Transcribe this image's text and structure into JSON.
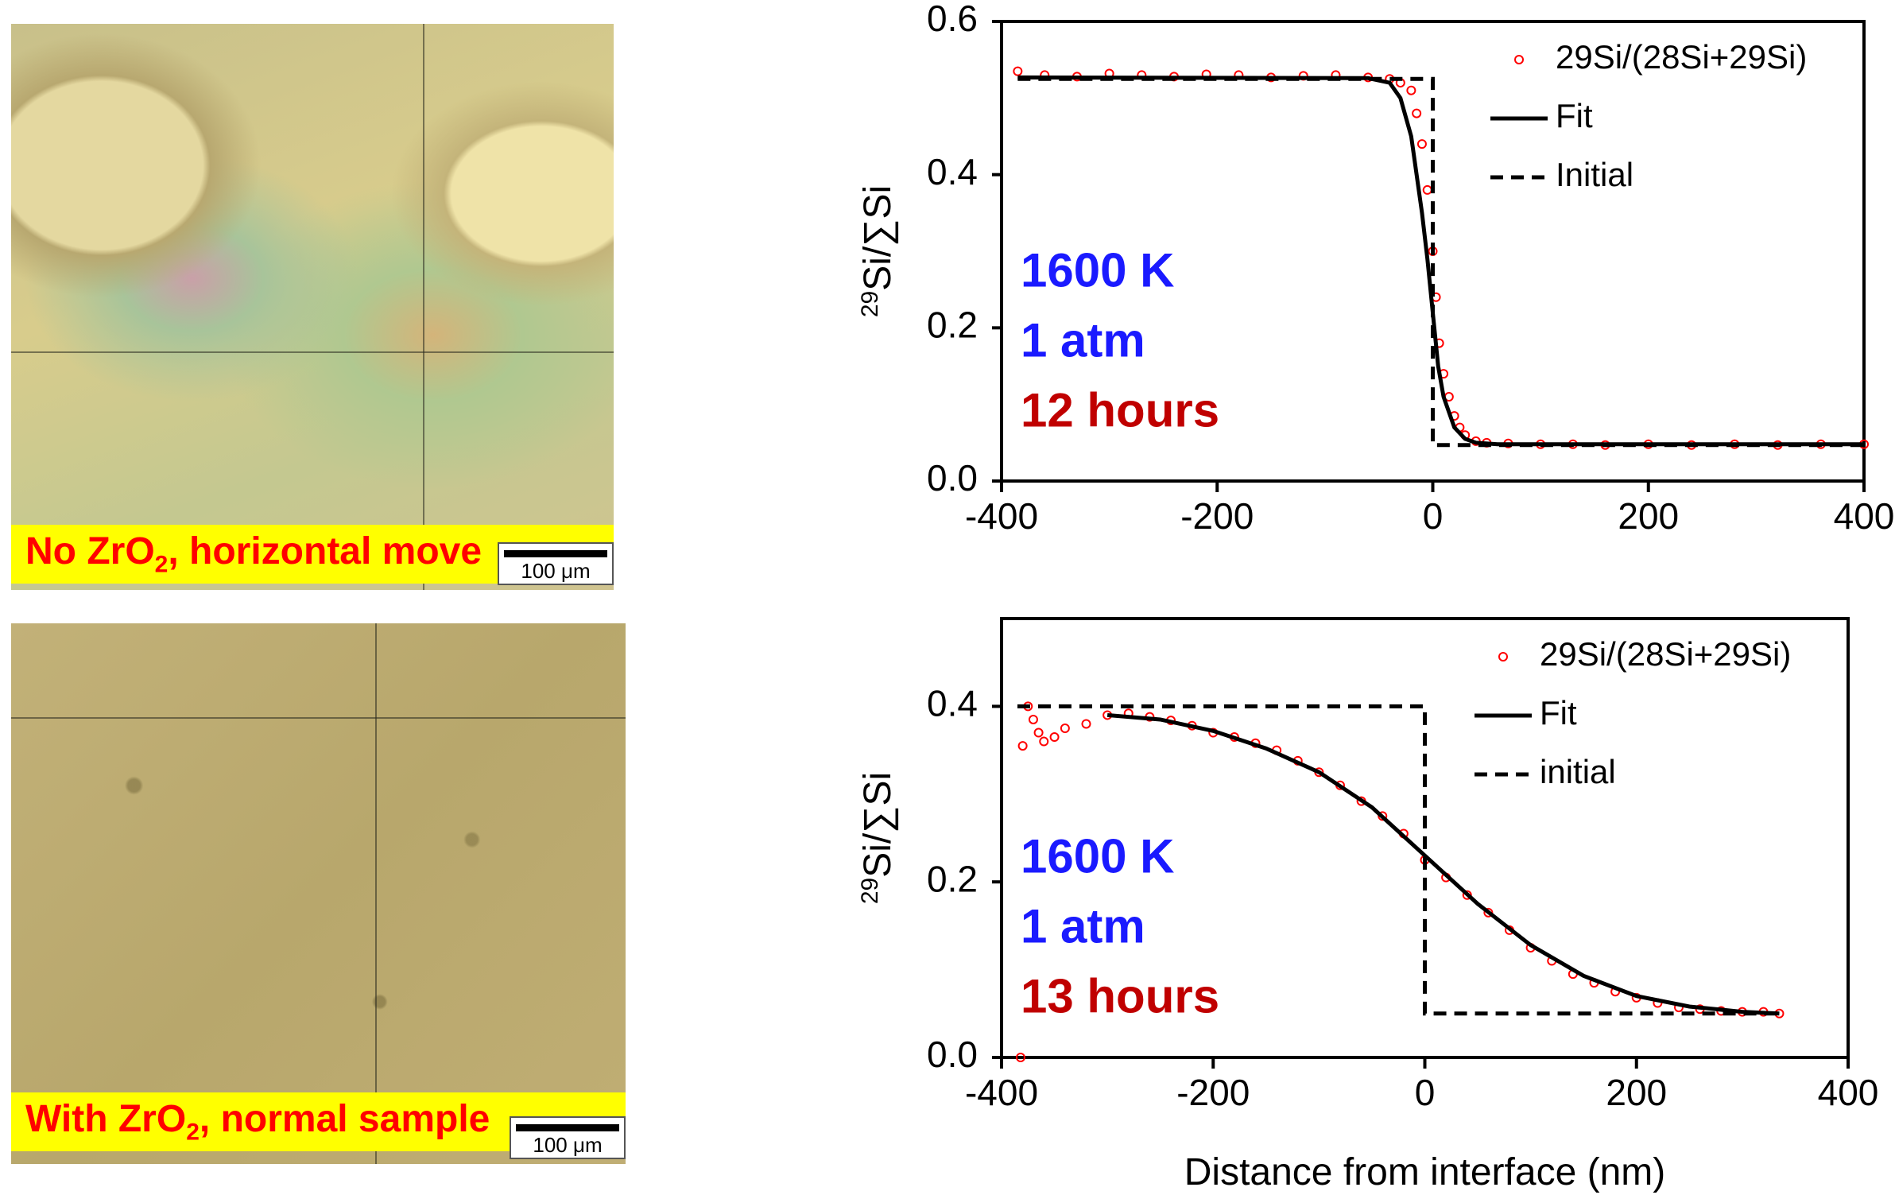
{
  "micrographs": [
    {
      "label": [
        "No ZrO",
        "2",
        ", horizontal move"
      ],
      "scale_bar": "100 μm"
    },
    {
      "label": [
        "With ZrO",
        "2",
        ", normal sample"
      ],
      "scale_bar": "100 μm"
    }
  ],
  "chart_data": [
    {
      "type": "scatter",
      "y_label": [
        "29",
        "Si/∑Si"
      ],
      "xlim": [
        -400,
        400
      ],
      "xticks": [
        -400,
        -200,
        0,
        200,
        400
      ],
      "ylim": [
        0,
        0.6
      ],
      "yticks": [
        {
          "value": 0,
          "label": "0.0"
        },
        0.2,
        0.4,
        0.6
      ],
      "legend": "upper right",
      "annotations": [
        {
          "text": "1600 K",
          "color": "#1a1aff"
        },
        {
          "text": "1 atm",
          "color": "#1a1aff"
        },
        {
          "text": "12 hours",
          "color": "#c00000"
        }
      ],
      "series": [
        {
          "name": "29Si/(28Si+29Si)",
          "color": "#ff0000",
          "style": "marker",
          "x": [
            -385,
            -360,
            -330,
            -300,
            -270,
            -240,
            -210,
            -180,
            -150,
            -120,
            -90,
            -60,
            -40,
            -30,
            -20,
            -15,
            -10,
            -5,
            0,
            3,
            6,
            10,
            15,
            20,
            25,
            30,
            40,
            50,
            70,
            100,
            130,
            160,
            200,
            240,
            280,
            320,
            360,
            400
          ],
          "values": [
            0.535,
            0.53,
            0.528,
            0.532,
            0.53,
            0.528,
            0.531,
            0.53,
            0.527,
            0.529,
            0.53,
            0.527,
            0.525,
            0.52,
            0.51,
            0.48,
            0.44,
            0.38,
            0.3,
            0.24,
            0.18,
            0.14,
            0.11,
            0.085,
            0.07,
            0.06,
            0.052,
            0.05,
            0.049,
            0.048,
            0.048,
            0.047,
            0.048,
            0.047,
            0.048,
            0.047,
            0.048,
            0.048
          ]
        },
        {
          "name": "Fit",
          "color": "#000000",
          "style": "solid",
          "x": [
            -385,
            -60,
            -40,
            -30,
            -20,
            -10,
            -5,
            0,
            5,
            10,
            20,
            30,
            40,
            60,
            400
          ],
          "values": [
            0.527,
            0.526,
            0.52,
            0.5,
            0.45,
            0.35,
            0.29,
            0.22,
            0.15,
            0.11,
            0.07,
            0.055,
            0.05,
            0.048,
            0.048
          ]
        },
        {
          "name": "Initial",
          "color": "#000000",
          "style": "dashed",
          "x": [
            -385,
            0,
            0,
            400
          ],
          "values": [
            0.525,
            0.525,
            0.047,
            0.047
          ]
        }
      ]
    },
    {
      "type": "scatter",
      "y_label": [
        "29",
        "Si/∑Si"
      ],
      "x_label": "Distance from interface (nm)",
      "xlim": [
        -400,
        400
      ],
      "xticks": [
        -400,
        -200,
        0,
        200,
        400
      ],
      "ylim": [
        0,
        0.5
      ],
      "yticks": [
        {
          "value": 0,
          "label": "0.0"
        },
        0.2,
        0.4
      ],
      "legend": "upper right",
      "annotations": [
        {
          "text": "1600 K",
          "color": "#1a1aff"
        },
        {
          "text": "1 atm",
          "color": "#1a1aff"
        },
        {
          "text": "13 hours",
          "color": "#c00000"
        }
      ],
      "series": [
        {
          "name": "29Si/(28Si+29Si)",
          "color": "#ff0000",
          "style": "marker",
          "x": [
            -382,
            -380,
            -375,
            -370,
            -365,
            -360,
            -350,
            -340,
            -320,
            -300,
            -280,
            -260,
            -240,
            -220,
            -200,
            -180,
            -160,
            -140,
            -120,
            -100,
            -80,
            -60,
            -40,
            -20,
            0,
            20,
            40,
            60,
            80,
            100,
            120,
            140,
            160,
            180,
            200,
            220,
            240,
            260,
            280,
            300,
            320,
            335
          ],
          "values": [
            0,
            0.355,
            0.4,
            0.385,
            0.37,
            0.36,
            0.365,
            0.375,
            0.38,
            0.39,
            0.392,
            0.388,
            0.384,
            0.378,
            0.37,
            0.365,
            0.358,
            0.35,
            0.338,
            0.325,
            0.31,
            0.292,
            0.275,
            0.255,
            0.225,
            0.205,
            0.185,
            0.165,
            0.145,
            0.125,
            0.11,
            0.095,
            0.085,
            0.075,
            0.068,
            0.062,
            0.057,
            0.055,
            0.053,
            0.052,
            0.052,
            0.05
          ]
        },
        {
          "name": "Fit",
          "color": "#000000",
          "style": "solid",
          "x": [
            -300,
            -250,
            -200,
            -150,
            -100,
            -50,
            0,
            50,
            100,
            150,
            200,
            250,
            300,
            335
          ],
          "values": [
            0.39,
            0.385,
            0.372,
            0.352,
            0.325,
            0.285,
            0.23,
            0.175,
            0.128,
            0.093,
            0.07,
            0.058,
            0.052,
            0.05
          ]
        },
        {
          "name": "initial",
          "color": "#000000",
          "style": "dashed",
          "x": [
            -385,
            0,
            0,
            340
          ],
          "values": [
            0.4,
            0.4,
            0.05,
            0.05
          ]
        }
      ]
    }
  ]
}
